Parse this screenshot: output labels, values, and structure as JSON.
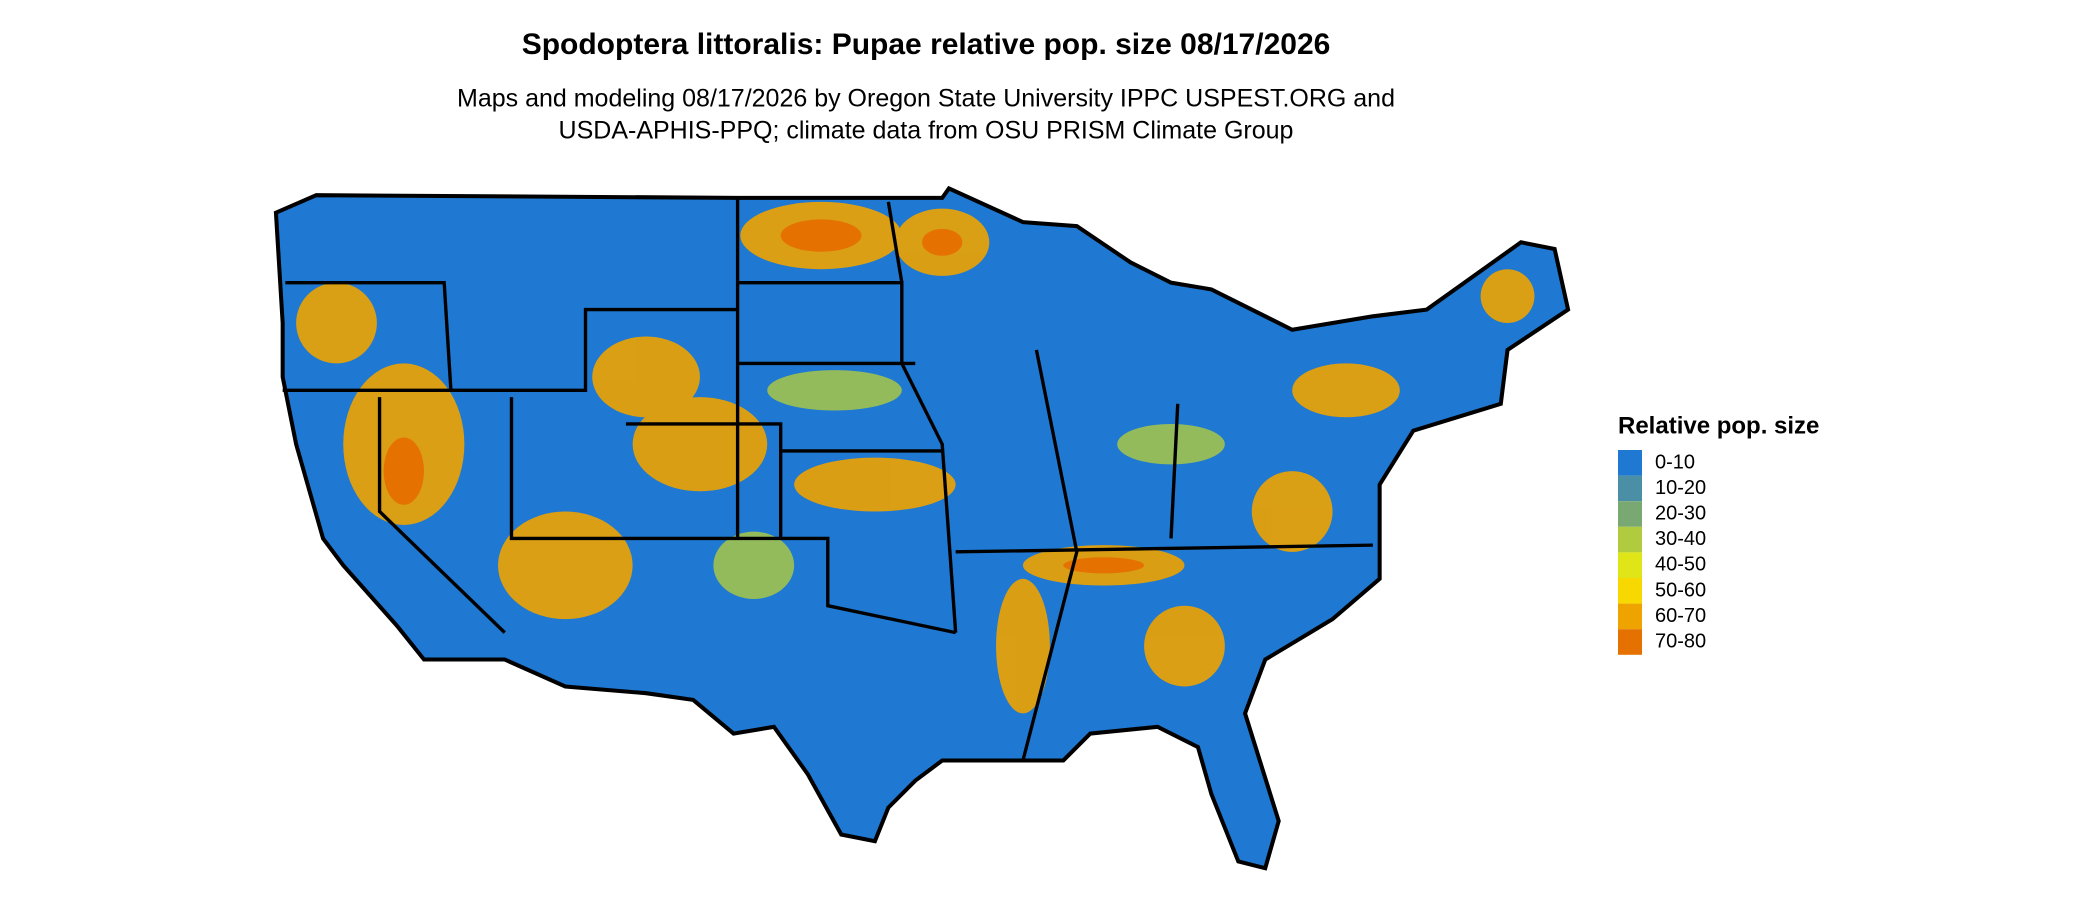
{
  "header": {
    "title": "Spodoptera littoralis: Pupae relative pop. size 08/17/2026",
    "subtitle": [
      "Maps and modeling 08/17/2026 by Oregon State University IPPC USPEST.ORG and",
      "USDA-APHIS-PPQ; climate data from OSU PRISM Climate Group"
    ]
  },
  "legend": {
    "title": "Relative pop. size",
    "items": [
      {
        "label": "0-10",
        "color": "#1f78d1"
      },
      {
        "label": "10-20",
        "color": "#4a8fa6"
      },
      {
        "label": "20-30",
        "color": "#7aa872"
      },
      {
        "label": "30-40",
        "color": "#b0cc3e"
      },
      {
        "label": "40-50",
        "color": "#e0e518"
      },
      {
        "label": "50-60",
        "color": "#f7d800"
      },
      {
        "label": "60-70",
        "color": "#eea300"
      },
      {
        "label": "70-80",
        "color": "#e57200"
      }
    ]
  }
}
